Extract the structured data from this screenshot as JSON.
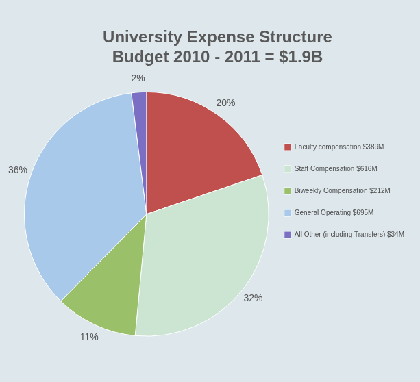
{
  "chart_data": {
    "type": "pie",
    "title": [
      "University Expense Structure",
      "Budget 2010 - 2011 = $1.9B"
    ],
    "categories": [
      "Faculty compensation $389M",
      "Staff Compensation $616M",
      "Biweekly Compensation $212M",
      "General Operating $695M",
      "All Other (including Transfers) $34M"
    ],
    "values": [
      20,
      32,
      11,
      36,
      2
    ],
    "value_labels": [
      "20%",
      "32%",
      "11%",
      "36%",
      "2%"
    ],
    "colors": [
      "#c0504d",
      "#cbe5d2",
      "#9bc06a",
      "#a9c9ea",
      "#7b6fc4"
    ],
    "data_labels": true,
    "legend": "right"
  }
}
